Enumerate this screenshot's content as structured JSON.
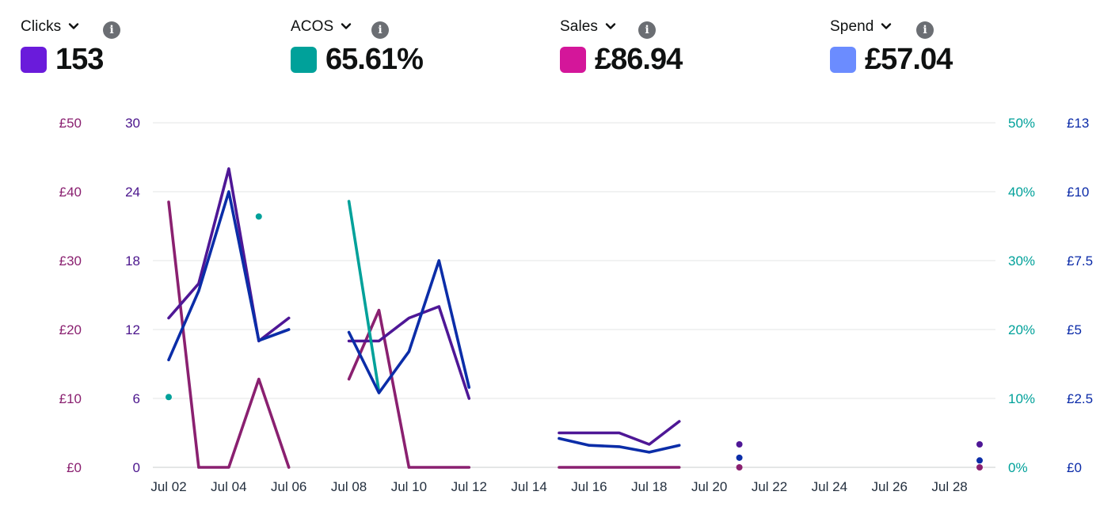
{
  "metrics": [
    {
      "label": "Clicks",
      "value": "153",
      "color": "#6a1bdb",
      "icon": "chevron-down-icon",
      "info_icon": "info-icon"
    },
    {
      "label": "ACOS",
      "value": "65.61%",
      "color": "#00a19a",
      "icon": "chevron-down-icon",
      "info_icon": "info-icon"
    },
    {
      "label": "Sales",
      "value": "£86.94",
      "color": "#d4169a",
      "icon": "chevron-down-icon",
      "info_icon": "info-icon"
    },
    {
      "label": "Spend",
      "value": "£57.04",
      "color": "#6b8cff",
      "icon": "chevron-down-icon",
      "info_icon": "info-icon"
    }
  ],
  "chart_data": {
    "type": "line",
    "x_categories": [
      "Jul 02",
      "Jul 03",
      "Jul 04",
      "Jul 05",
      "Jul 06",
      "Jul 07",
      "Jul 08",
      "Jul 09",
      "Jul 10",
      "Jul 11",
      "Jul 12",
      "Jul 13",
      "Jul 14",
      "Jul 15",
      "Jul 16",
      "Jul 17",
      "Jul 18",
      "Jul 19",
      "Jul 20",
      "Jul 21",
      "Jul 22",
      "Jul 23",
      "Jul 24",
      "Jul 25",
      "Jul 26",
      "Jul 27",
      "Jul 28",
      "Jul 29"
    ],
    "x_tick_labels": [
      "Jul 02",
      "Jul 04",
      "Jul 06",
      "Jul 08",
      "Jul 10",
      "Jul 12",
      "Jul 14",
      "Jul 16",
      "Jul 18",
      "Jul 20",
      "Jul 22",
      "Jul 24",
      "Jul 26",
      "Jul 28"
    ],
    "grid": true,
    "axes": {
      "sales": {
        "ticks": [
          "£0",
          "£10",
          "£20",
          "£30",
          "£40",
          "£50"
        ],
        "range": [
          0,
          50
        ],
        "color": "#8a2070"
      },
      "clicks": {
        "ticks": [
          "0",
          "6",
          "12",
          "18",
          "24",
          "30"
        ],
        "range": [
          0,
          30
        ],
        "color": "#4a148c"
      },
      "acos": {
        "ticks": [
          "0%",
          "10%",
          "20%",
          "30%",
          "40%",
          "50%"
        ],
        "range": [
          0,
          50
        ],
        "color": "#00a19a"
      },
      "spend": {
        "ticks": [
          "£0",
          "£2.5",
          "£5",
          "£7.5",
          "£10",
          "£13"
        ],
        "range": [
          0,
          12.5
        ],
        "color": "#0a2aa8"
      }
    },
    "series": [
      {
        "name": "Sales",
        "axis": "sales",
        "color": "#8a2070",
        "values": [
          38.5,
          0,
          0,
          12.8,
          0,
          null,
          12.8,
          22.8,
          0,
          0,
          0,
          null,
          null,
          0,
          0,
          0,
          0,
          0,
          null,
          0,
          null,
          null,
          null,
          null,
          null,
          null,
          null,
          0
        ]
      },
      {
        "name": "Clicks",
        "axis": "clicks",
        "color": "#4e1796",
        "values": [
          13,
          16,
          26,
          11,
          13,
          null,
          11,
          11,
          13,
          14,
          6,
          null,
          null,
          3,
          3,
          3,
          2,
          4,
          null,
          2,
          null,
          null,
          null,
          null,
          null,
          null,
          null,
          2
        ]
      },
      {
        "name": "ACOS",
        "axis": "acos",
        "color": "#00a19a",
        "values": [
          10.2,
          null,
          null,
          36.4,
          null,
          null,
          38.6,
          11.0,
          null,
          null,
          null,
          null,
          null,
          null,
          null,
          null,
          null,
          null,
          null,
          null,
          null,
          null,
          null,
          null,
          null,
          null,
          null,
          null
        ]
      },
      {
        "name": "Spend",
        "axis": "spend",
        "color": "#0b2da8",
        "values": [
          3.9,
          6.4,
          10.0,
          4.6,
          5.0,
          null,
          4.9,
          2.7,
          4.2,
          7.5,
          2.9,
          null,
          null,
          1.05,
          0.8,
          0.75,
          0.55,
          0.8,
          null,
          0.35,
          null,
          null,
          null,
          null,
          null,
          null,
          null,
          0.25
        ]
      }
    ]
  }
}
